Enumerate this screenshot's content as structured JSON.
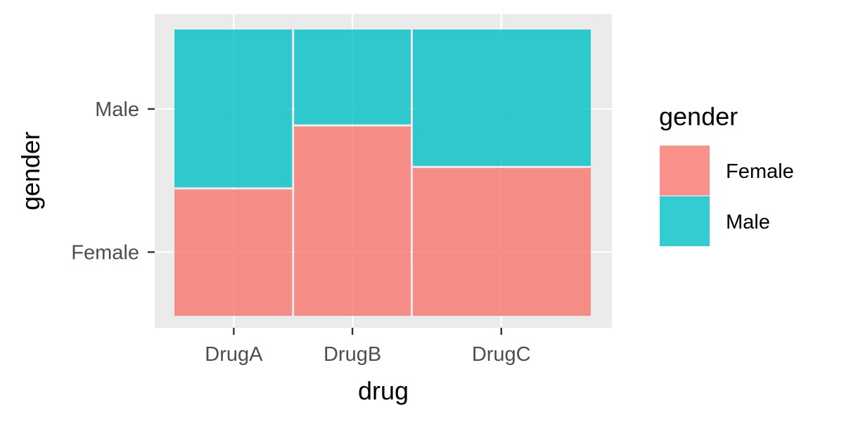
{
  "chart_data": {
    "type": "mosaic",
    "xlabel": "drug",
    "ylabel": "gender",
    "categories": [
      "DrugA",
      "DrugB",
      "DrugC"
    ],
    "column_widths": [
      0.285,
      0.285,
      0.43
    ],
    "y_levels": [
      "Female",
      "Male"
    ],
    "series": [
      {
        "name": "Female",
        "values": [
          0.445,
          0.665,
          0.52
        ]
      },
      {
        "name": "Male",
        "values": [
          0.555,
          0.335,
          0.48
        ]
      }
    ],
    "legend": {
      "title": "gender",
      "position": "right",
      "entries": [
        "Female",
        "Male"
      ]
    },
    "colors": {
      "Female": "#F8766D",
      "Male": "#00BFC4"
    },
    "grid": true
  }
}
